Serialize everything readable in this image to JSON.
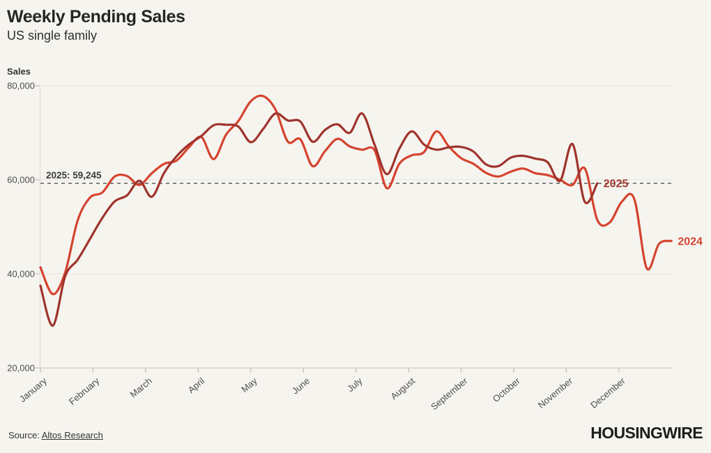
{
  "header": {
    "title": "Weekly Pending Sales",
    "subtitle": "US single family"
  },
  "footer": {
    "source_prefix": "Source: ",
    "source_link": "Altos Research",
    "logo": "HOUSINGWIRE"
  },
  "chart_data": {
    "type": "line",
    "title": "Weekly Pending Sales",
    "subtitle": "US single family",
    "xlabel": "",
    "ylabel": "Sales",
    "ylim": [
      20000,
      80000
    ],
    "yticks": [
      20000,
      40000,
      60000,
      80000
    ],
    "ytick_labels": [
      "20,000",
      "40,000",
      "60,000",
      "80,000"
    ],
    "x_unit": "week-of-year",
    "x_months": [
      "January",
      "February",
      "March",
      "April",
      "May",
      "June",
      "July",
      "August",
      "September",
      "October",
      "November",
      "December"
    ],
    "grid": "horizontal",
    "legend_position": "line-end-labels",
    "annotation": {
      "label": "2025: 59,245",
      "value": 59245,
      "style": "dashed-horizontal-line"
    },
    "series": [
      {
        "name": "2024",
        "color": "#d5432f",
        "values": [
          41400,
          35700,
          40300,
          51300,
          56200,
          57300,
          60700,
          60800,
          58900,
          61400,
          63400,
          64100,
          66900,
          69100,
          64400,
          69600,
          72500,
          76700,
          77800,
          74900,
          68100,
          68600,
          62900,
          66100,
          68700,
          67100,
          66400,
          66300,
          58200,
          63400,
          65200,
          65900,
          70300,
          67100,
          64600,
          63400,
          61500,
          60700,
          61700,
          62400,
          61400,
          61000,
          60000,
          58900,
          62400,
          51500,
          50900,
          55400,
          55900,
          41200,
          46400,
          47000
        ]
      },
      {
        "name": "2025",
        "color": "#9e342c",
        "values": [
          37500,
          29000,
          39500,
          43000,
          47400,
          51900,
          55400,
          56700,
          59800,
          56400,
          61500,
          65000,
          67500,
          69300,
          71600,
          71700,
          71300,
          68000,
          70800,
          74100,
          72600,
          72400,
          68100,
          70600,
          71800,
          70000,
          74100,
          67500,
          61200,
          66600,
          70300,
          67500,
          66400,
          66900,
          67000,
          66000,
          63300,
          62900,
          64700,
          65100,
          64500,
          63700,
          59800,
          67600,
          55300,
          59245
        ]
      }
    ]
  }
}
